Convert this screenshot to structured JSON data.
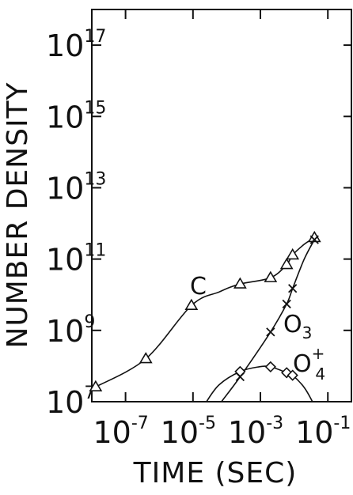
{
  "chart_data": {
    "type": "scatter",
    "xlabel": "TIME (SEC)",
    "ylabel": "NUMBER DENSITY",
    "x_scale": "log",
    "y_scale": "log",
    "xlim": [
      1e-08,
      0.5
    ],
    "ylim": [
      10000000.0,
      1e+18
    ],
    "x_ticks": [
      {
        "value": 1e-07,
        "base": "10",
        "exp": "-7"
      },
      {
        "value": 1e-05,
        "base": "10",
        "exp": "-5"
      },
      {
        "value": 0.001,
        "base": "10",
        "exp": "-3"
      },
      {
        "value": 0.1,
        "base": "10",
        "exp": "-1"
      }
    ],
    "y_ticks": [
      {
        "value": 10000000.0,
        "base": "10",
        "exp": "7"
      },
      {
        "value": 1000000000.0,
        "base": "10",
        "exp": "9"
      },
      {
        "value": 100000000000.0,
        "base": "10",
        "exp": "11"
      },
      {
        "value": 10000000000000.0,
        "base": "10",
        "exp": "13"
      },
      {
        "value": 1000000000000000.0,
        "base": "10",
        "exp": "15"
      },
      {
        "value": 1e+17,
        "base": "10",
        "exp": "17"
      }
    ],
    "grid": false,
    "legend": "none",
    "series": [
      {
        "name": "C",
        "label_base": "C",
        "label_sub": "",
        "label_sup": "",
        "marker": "triangle",
        "points": [
          {
            "x": 1.3e-08,
            "y": 26000000.0
          },
          {
            "x": 4e-07,
            "y": 160000000.0
          },
          {
            "x": 9e-06,
            "y": 5000000000.0
          },
          {
            "x": 0.00025,
            "y": 20000000000.0
          },
          {
            "x": 0.002,
            "y": 30000000000.0
          },
          {
            "x": 0.006,
            "y": 70000000000.0
          },
          {
            "x": 0.009,
            "y": 130000000000.0
          },
          {
            "x": 0.04,
            "y": 400000000000.0
          }
        ],
        "curve": [
          [
            1.3e-08,
            26000000.0
          ],
          [
            4e-07,
            160000000.0
          ],
          [
            9e-06,
            5000000000.0
          ],
          [
            6e-05,
            12000000000.0
          ],
          [
            0.00025,
            20000000000.0
          ],
          [
            0.002,
            30000000000.0
          ],
          [
            0.006,
            70000000000.0
          ],
          [
            0.009,
            130000000000.0
          ],
          [
            0.02,
            260000000000.0
          ],
          [
            0.04,
            400000000000.0
          ]
        ]
      },
      {
        "name": "O3",
        "label_base": "O",
        "label_sub": "3",
        "label_sup": "",
        "marker": "x",
        "points": [
          {
            "x": 0.00025,
            "y": 50000000.0
          },
          {
            "x": 0.002,
            "y": 900000000.0
          },
          {
            "x": 0.006,
            "y": 5500000000.0
          },
          {
            "x": 0.009,
            "y": 15000000000.0
          },
          {
            "x": 0.04,
            "y": 350000000000.0
          }
        ],
        "curve": [
          [
            7e-05,
            10000000.0
          ],
          [
            0.00025,
            50000000.0
          ],
          [
            0.002,
            900000000.0
          ],
          [
            0.006,
            5500000000.0
          ],
          [
            0.009,
            15000000000.0
          ],
          [
            0.02,
            100000000000.0
          ],
          [
            0.04,
            350000000000.0
          ]
        ]
      },
      {
        "name": "O4+",
        "label_base": "O",
        "label_sub": "4",
        "label_sup": "+",
        "marker": "diamond",
        "points": [
          {
            "x": 0.00025,
            "y": 70000000.0
          },
          {
            "x": 0.002,
            "y": 95000000.0
          },
          {
            "x": 0.006,
            "y": 65000000.0
          },
          {
            "x": 0.009,
            "y": 55000000.0
          }
        ],
        "curve": [
          [
            2.5e-05,
            10000000.0
          ],
          [
            6e-05,
            30000000.0
          ],
          [
            0.00025,
            70000000.0
          ],
          [
            0.0009,
            95000000.0
          ],
          [
            0.002,
            95000000.0
          ],
          [
            0.006,
            65000000.0
          ],
          [
            0.009,
            55000000.0
          ],
          [
            0.02,
            25000000.0
          ],
          [
            0.035,
            10000000.0
          ]
        ]
      }
    ]
  }
}
